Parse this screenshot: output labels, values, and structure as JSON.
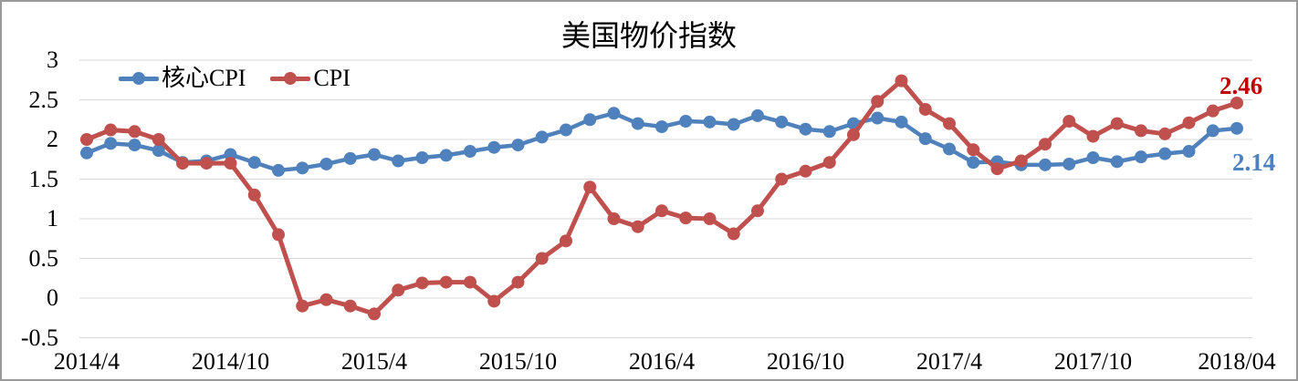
{
  "chart_data": {
    "type": "line",
    "title": "美国物价指数",
    "categories": [
      "2014/4",
      "2014/5",
      "2014/6",
      "2014/7",
      "2014/8",
      "2014/9",
      "2014/10",
      "2014/11",
      "2014/12",
      "2015/1",
      "2015/2",
      "2015/3",
      "2015/4",
      "2015/5",
      "2015/6",
      "2015/7",
      "2015/8",
      "2015/9",
      "2015/10",
      "2015/11",
      "2015/12",
      "2016/1",
      "2016/2",
      "2016/3",
      "2016/4",
      "2016/5",
      "2016/6",
      "2016/7",
      "2016/8",
      "2016/9",
      "2016/10",
      "2016/11",
      "2016/12",
      "2017/1",
      "2017/2",
      "2017/3",
      "2017/4",
      "2017/5",
      "2017/6",
      "2017/7",
      "2017/8",
      "2017/9",
      "2017/10",
      "2017/11",
      "2017/12",
      "2018/1",
      "2018/2",
      "2018/3",
      "2018/4"
    ],
    "series": [
      {
        "name": "核心CPI",
        "color": "#4F81BD",
        "values": [
          1.83,
          1.95,
          1.93,
          1.86,
          1.71,
          1.73,
          1.81,
          1.71,
          1.61,
          1.64,
          1.69,
          1.76,
          1.81,
          1.73,
          1.77,
          1.8,
          1.85,
          1.9,
          1.93,
          2.03,
          2.12,
          2.25,
          2.33,
          2.2,
          2.16,
          2.23,
          2.22,
          2.19,
          2.3,
          2.22,
          2.13,
          2.1,
          2.2,
          2.27,
          2.22,
          2.01,
          1.88,
          1.71,
          1.72,
          1.68,
          1.68,
          1.69,
          1.77,
          1.72,
          1.78,
          1.82,
          1.85,
          2.11,
          2.14
        ],
        "end_label": {
          "text": "2.14",
          "color": "#4F81BD"
        }
      },
      {
        "name": "CPI",
        "color": "#C0504D",
        "values": [
          2.0,
          2.12,
          2.1,
          2.0,
          1.7,
          1.7,
          1.7,
          1.3,
          0.8,
          -0.1,
          -0.02,
          -0.1,
          -0.2,
          0.1,
          0.19,
          0.2,
          0.2,
          -0.04,
          0.2,
          0.5,
          0.72,
          1.4,
          1.0,
          0.9,
          1.1,
          1.01,
          1.0,
          0.81,
          1.1,
          1.5,
          1.6,
          1.71,
          2.06,
          2.48,
          2.74,
          2.38,
          2.2,
          1.87,
          1.63,
          1.73,
          1.94,
          2.23,
          2.04,
          2.2,
          2.11,
          2.07,
          2.21,
          2.36,
          2.46
        ],
        "end_label": {
          "text": "2.46",
          "color": "#C00000"
        }
      }
    ],
    "x_tick_labels": [
      "2014/4",
      "2014/10",
      "2015/4",
      "2015/10",
      "2016/4",
      "2016/10",
      "2017/4",
      "2017/10",
      "2018/04"
    ],
    "x_tick_every": 6,
    "y_tick_labels": [
      "3",
      "2.5",
      "2",
      "1.5",
      "1",
      "0.5",
      "0",
      "-0.5"
    ],
    "ylim": [
      -0.5,
      3
    ],
    "grid": "horizontal-only",
    "gridline_color": "#D8D8D8",
    "legend_position": "top-left-inside",
    "plot_order": [
      "核心CPI",
      "CPI"
    ]
  }
}
